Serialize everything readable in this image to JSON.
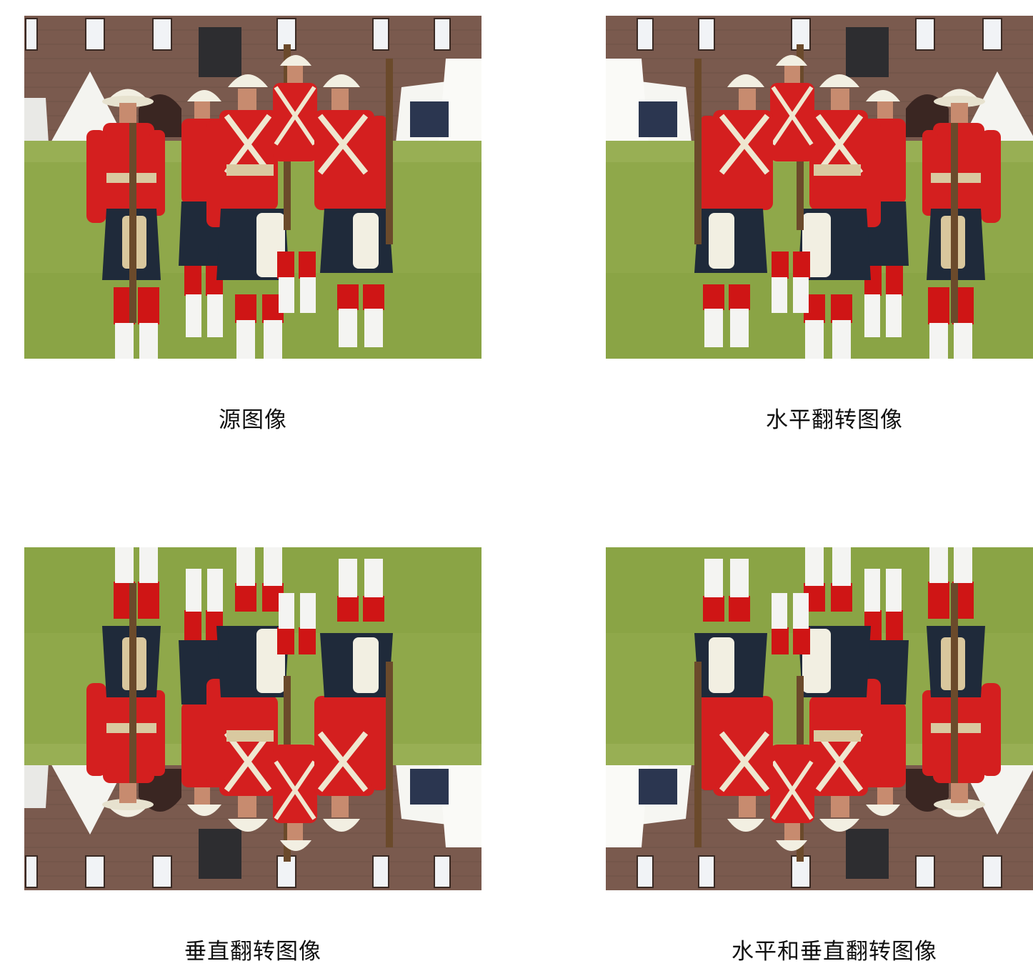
{
  "panels": [
    {
      "caption": "源图像",
      "flip": "none"
    },
    {
      "caption": "水平翻转图像",
      "flip": "horizontal"
    },
    {
      "caption": "垂直翻转图像",
      "flip": "vertical"
    },
    {
      "caption": "水平和垂直翻转图像",
      "flip": "both"
    }
  ],
  "colors": {
    "wall": "#7a5a4e",
    "grass": "#8fa84a",
    "tunic": "#d41f1f",
    "helmet": "#f2efe2",
    "kilt": "#1f2a3a"
  }
}
